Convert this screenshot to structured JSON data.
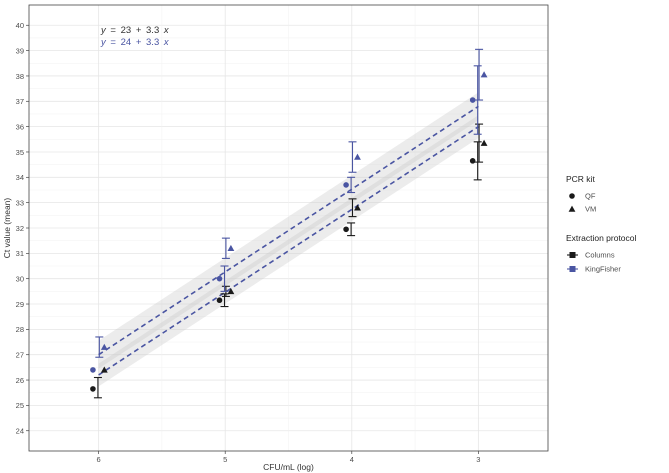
{
  "chart_data": {
    "type": "scatter",
    "xlabel": "CFU/mL (log)",
    "ylabel": "Ct value (mean)",
    "x_reversed": true,
    "xlim": [
      6.55,
      2.45
    ],
    "ylim": [
      23.2,
      40.8
    ],
    "x_ticks": [
      6,
      5,
      4,
      3
    ],
    "y_ticks": [
      24,
      25,
      26,
      27,
      28,
      29,
      30,
      31,
      32,
      33,
      34,
      35,
      36,
      37,
      38,
      39,
      40
    ],
    "grid": true,
    "equations": [
      {
        "protocol": "Columns",
        "y_label": "y",
        "equals": "=",
        "intercept": "23",
        "plus": "+",
        "slope": "3.3",
        "x_label": "x",
        "color": "#333333"
      },
      {
        "protocol": "KingFisher",
        "y_label": "y",
        "equals": "=",
        "intercept": "24",
        "plus": "+",
        "slope": "3.3",
        "x_label": "x",
        "color": "#4a55a2"
      }
    ],
    "fits": [
      {
        "protocol": "Columns",
        "x_from": 6,
        "x_to": 3,
        "y_from": 26.2,
        "y_to": 36.0,
        "band": 0.45,
        "color": "#4a55a2"
      },
      {
        "protocol": "KingFisher",
        "x_from": 6,
        "x_to": 3,
        "y_from": 27.0,
        "y_to": 36.8,
        "band": 0.55,
        "color": "#4a55a2"
      }
    ],
    "points": [
      {
        "x": 6,
        "kit": "QF",
        "protocol": "Columns",
        "mean": 25.65,
        "low": 25.3,
        "high": 26.1
      },
      {
        "x": 6,
        "kit": "VM",
        "protocol": "Columns",
        "mean": 26.4,
        "low": 26.4,
        "high": 26.4
      },
      {
        "x": 6,
        "kit": "QF",
        "protocol": "KingFisher",
        "mean": 26.4,
        "low": 26.4,
        "high": 26.4
      },
      {
        "x": 6,
        "kit": "VM",
        "protocol": "KingFisher",
        "mean": 27.3,
        "low": 26.9,
        "high": 27.7
      },
      {
        "x": 5,
        "kit": "QF",
        "protocol": "Columns",
        "mean": 29.15,
        "low": 28.9,
        "high": 29.4
      },
      {
        "x": 5,
        "kit": "VM",
        "protocol": "Columns",
        "mean": 29.5,
        "low": 29.3,
        "high": 29.7
      },
      {
        "x": 5,
        "kit": "QF",
        "protocol": "KingFisher",
        "mean": 30.0,
        "low": 29.5,
        "high": 30.5
      },
      {
        "x": 5,
        "kit": "VM",
        "protocol": "KingFisher",
        "mean": 31.2,
        "low": 30.8,
        "high": 31.6
      },
      {
        "x": 4,
        "kit": "QF",
        "protocol": "Columns",
        "mean": 31.95,
        "low": 31.7,
        "high": 32.2
      },
      {
        "x": 4,
        "kit": "VM",
        "protocol": "Columns",
        "mean": 32.8,
        "low": 32.45,
        "high": 33.15
      },
      {
        "x": 4,
        "kit": "QF",
        "protocol": "KingFisher",
        "mean": 33.7,
        "low": 33.4,
        "high": 34.0
      },
      {
        "x": 4,
        "kit": "VM",
        "protocol": "KingFisher",
        "mean": 34.8,
        "low": 34.2,
        "high": 35.4
      },
      {
        "x": 3,
        "kit": "QF",
        "protocol": "Columns",
        "mean": 34.65,
        "low": 33.9,
        "high": 35.4
      },
      {
        "x": 3,
        "kit": "VM",
        "protocol": "Columns",
        "mean": 35.35,
        "low": 34.6,
        "high": 36.1
      },
      {
        "x": 3,
        "kit": "QF",
        "protocol": "KingFisher",
        "mean": 37.05,
        "low": 35.7,
        "high": 38.4
      },
      {
        "x": 3,
        "kit": "VM",
        "protocol": "KingFisher",
        "mean": 38.05,
        "low": 37.05,
        "high": 39.05
      }
    ],
    "legend": {
      "placement": "right",
      "kit_title": "PCR kit",
      "kit_items": [
        {
          "label": "QF",
          "shape": "circle"
        },
        {
          "label": "VM",
          "shape": "triangle"
        }
      ],
      "protocol_title": "Extraction protocol",
      "protocol_items": [
        {
          "label": "Columns",
          "color": "#1a1a1a"
        },
        {
          "label": "KingFisher",
          "color": "#4a55a2"
        }
      ]
    },
    "colors": {
      "Columns": "#1a1a1a",
      "KingFisher": "#4a55a2",
      "grid": "#e6e6e6",
      "frame": "#444444",
      "band": "#c9c9c9"
    }
  }
}
